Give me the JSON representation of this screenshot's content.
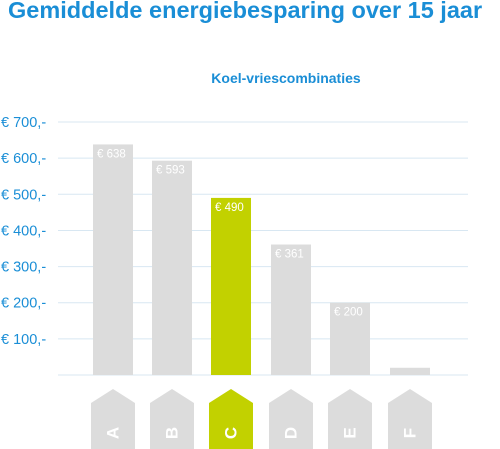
{
  "title": "Gemiddelde energiebesparing over 15 jaar",
  "chart_data": {
    "type": "bar",
    "title": "Gemiddelde energiebesparing over 15 jaar",
    "subtitle": "Koel-vriescombinaties",
    "xlabel": "",
    "ylabel": "",
    "ylim": [
      0,
      700
    ],
    "grid": true,
    "legend": "none",
    "y_ticks": [
      {
        "value": 100,
        "label": "€ 100,-"
      },
      {
        "value": 200,
        "label": "€ 200,-"
      },
      {
        "value": 300,
        "label": "€ 300,-"
      },
      {
        "value": 400,
        "label": "€ 400,-"
      },
      {
        "value": 500,
        "label": "€ 500,-"
      },
      {
        "value": 600,
        "label": "€ 600,-"
      },
      {
        "value": 700,
        "label": "€ 700,-"
      }
    ],
    "categories": [
      "A",
      "B",
      "C",
      "D",
      "E",
      "F"
    ],
    "values": [
      638,
      593,
      490,
      361,
      200,
      20
    ],
    "value_labels": [
      "€ 638",
      "€ 593",
      "€ 490",
      "€ 361",
      "€ 200",
      ""
    ],
    "highlight": "C",
    "colors": {
      "title": "#1a8ed6",
      "axis_text": "#1a8ed6",
      "bar": "#dcdcdc",
      "bar_highlight": "#c2d100",
      "grid": "#d8e7f2",
      "tag": "#dcdcdc",
      "tag_highlight": "#c2d100"
    }
  }
}
